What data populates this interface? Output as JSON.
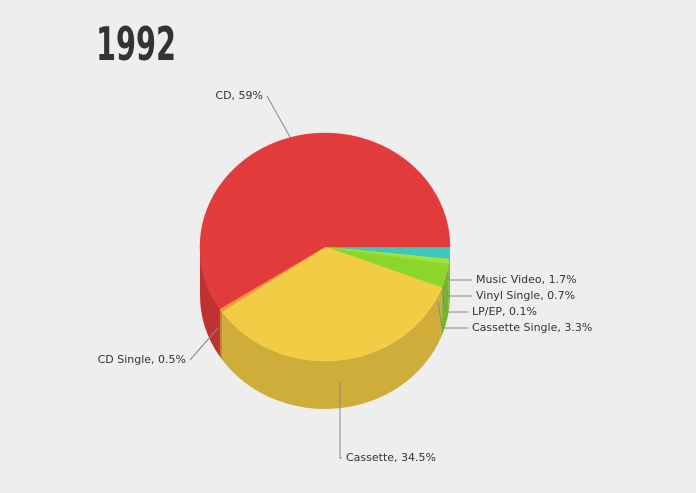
{
  "chart_data": {
    "type": "pie3d",
    "title": "1992",
    "values": [
      1.7,
      0.7,
      0.1,
      3.3,
      34.5,
      0.5,
      59
    ],
    "value_labels": [
      "Music Video, 1.7%",
      "Vinyl Single, 0.7%",
      "LP/EP, 0.1%",
      "Cassette Single, 3.3%",
      "Cassette, 34.5%",
      "CD Single, 0.5%",
      "CD, 59%"
    ],
    "colors": [
      "#3cc9b9",
      "#a4de3c",
      "#82cf22",
      "#8cd62c",
      "#f2cc45",
      "#e99a3a",
      "#e23b3b"
    ]
  }
}
